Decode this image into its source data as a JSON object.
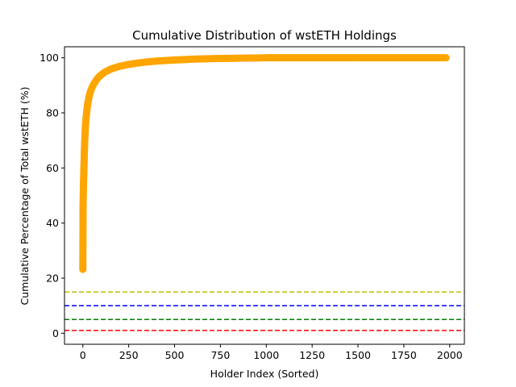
{
  "chart_data": {
    "type": "line",
    "title": "Cumulative Distribution of wstETH Holdings",
    "xlabel": "Holder Index (Sorted)",
    "ylabel": "Cumulative Percentage of Total wstETH (%)",
    "xlim": [
      -100,
      2080
    ],
    "ylim": [
      -4,
      104
    ],
    "xticks": [
      0,
      250,
      500,
      750,
      1000,
      1250,
      1500,
      1750,
      2000
    ],
    "yticks": [
      0,
      20,
      40,
      60,
      80,
      100
    ],
    "grid": false,
    "series": [
      {
        "color": "#ffa500",
        "marker": "circle",
        "x": [
          0,
          1,
          2,
          3,
          4,
          5,
          6,
          7,
          8,
          9,
          10,
          12,
          14,
          16,
          18,
          20,
          23,
          26,
          30,
          35,
          40,
          45,
          50,
          55,
          60,
          70,
          80,
          90,
          100,
          120,
          140,
          160,
          180,
          200,
          250,
          300,
          350,
          400,
          450,
          500,
          600,
          700,
          800,
          900,
          1000,
          1100,
          1200,
          1300,
          1400,
          1500,
          1600,
          1700,
          1800,
          1900,
          1980
        ],
        "y": [
          23.2,
          43.9,
          48.9,
          53.0,
          55.7,
          58.0,
          60.3,
          62.7,
          65.0,
          67.2,
          69.2,
          72.4,
          74.8,
          76.8,
          78.4,
          79.8,
          81.6,
          83.0,
          84.6,
          86.2,
          87.4,
          88.4,
          89.2,
          89.9,
          90.5,
          91.6,
          92.5,
          93.2,
          93.8,
          94.8,
          95.5,
          96.1,
          96.5,
          96.9,
          97.6,
          98.1,
          98.5,
          98.8,
          99.0,
          99.2,
          99.5,
          99.7,
          99.8,
          99.9,
          100.0,
          100.0,
          100.0,
          100.0,
          100.0,
          100.0,
          100.0,
          100.0,
          100.0,
          100.0,
          100.0
        ]
      }
    ],
    "reference_lines": [
      {
        "y": 15,
        "color": "#bfbf00",
        "style": "dashed"
      },
      {
        "y": 10,
        "color": "#0000ff",
        "style": "dashed"
      },
      {
        "y": 5,
        "color": "#008000",
        "style": "dashed"
      },
      {
        "y": 1,
        "color": "#ff0000",
        "style": "dashed"
      }
    ]
  }
}
